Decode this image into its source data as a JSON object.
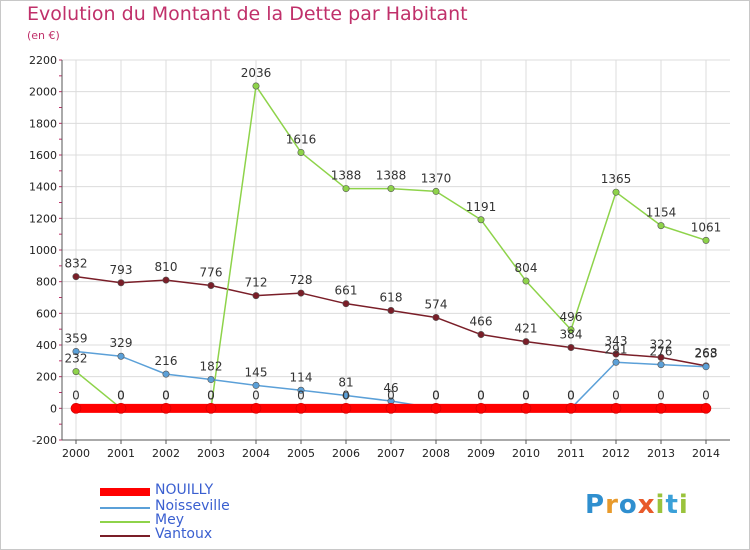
{
  "header": {
    "title": "Evolution du Montant de la Dette par Habitant",
    "unit": "(en €)"
  },
  "logo": {
    "letters": [
      "P",
      "r",
      "o",
      "x",
      "i",
      "t",
      "i"
    ],
    "colors": [
      "#2f8fcf",
      "#e89a2c",
      "#2f8fcf",
      "#e85a2a",
      "#9ac33c",
      "#3aa0d8",
      "#9ac33c"
    ]
  },
  "chart_data": {
    "type": "line",
    "title": "Evolution du Montant de la Dette par Habitant",
    "subtitle": "(en €)",
    "x": [
      "2000",
      "2001",
      "2002",
      "2003",
      "2004",
      "2005",
      "2006",
      "2007",
      "2008",
      "2009",
      "2010",
      "2011",
      "2012",
      "2013",
      "2014"
    ],
    "ylim": [
      -200,
      2200
    ],
    "yticks": [
      "-200",
      "0",
      "200",
      "400",
      "600",
      "800",
      "1000",
      "1200",
      "1400",
      "1600",
      "1800",
      "2000",
      "2200"
    ],
    "grid": true,
    "legend": "bottom-left",
    "series": [
      {
        "name": "NOUILLY",
        "color": "#ff0000",
        "values": [
          0,
          0,
          0,
          0,
          0,
          0,
          0,
          0,
          0,
          0,
          0,
          0,
          0,
          0,
          0
        ],
        "labels": [
          "0",
          "0",
          "0",
          "0",
          "0",
          "0",
          "0",
          "0",
          "0",
          "0",
          "0",
          "0",
          "0",
          "0",
          "0"
        ]
      },
      {
        "name": "Noisseville",
        "color": "#5ba0d8",
        "values": [
          359,
          329,
          216,
          182,
          145,
          114,
          81,
          46,
          0,
          0,
          0,
          0,
          291,
          276,
          263
        ],
        "labels": [
          "359",
          "329",
          "216",
          "182",
          "145",
          "114",
          "81",
          "46",
          "0",
          "0",
          "0",
          "0",
          "291",
          "276",
          "263"
        ]
      },
      {
        "name": "Mey",
        "color": "#8ed34a",
        "values": [
          232,
          0,
          0,
          0,
          2036,
          1616,
          1388,
          1388,
          1370,
          1191,
          804,
          496,
          1365,
          1154,
          1061
        ],
        "labels": [
          "232",
          "0",
          "0",
          "0",
          "2036",
          "1616",
          "1388",
          "1388",
          "1370",
          "1191",
          "804",
          "496",
          "1365",
          "1154",
          "1061"
        ]
      },
      {
        "name": "Vantoux",
        "color": "#7a1e28",
        "values": [
          832,
          793,
          810,
          776,
          712,
          728,
          661,
          618,
          574,
          466,
          421,
          384,
          343,
          322,
          268
        ],
        "labels": [
          "832",
          "793",
          "810",
          "776",
          "712",
          "728",
          "661",
          "618",
          "574",
          "466",
          "421",
          "384",
          "343",
          "322",
          "268"
        ]
      }
    ]
  }
}
